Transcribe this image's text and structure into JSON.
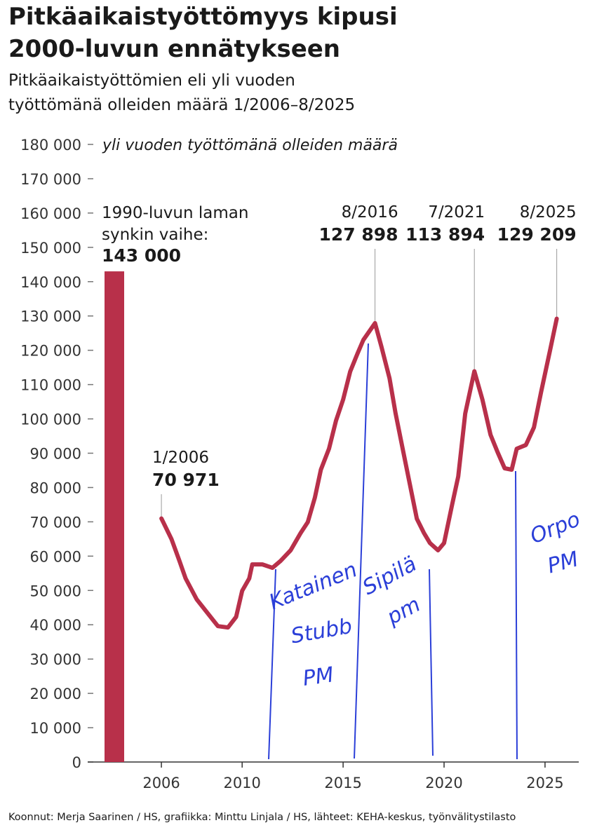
{
  "chart_data": {
    "type": "line",
    "title": [
      "Pitkäaikaistyöttömyys kipusi",
      "2000-luvun ennätykseen"
    ],
    "subtitle": [
      "Pitkäaikaistyöttömien eli yli vuoden",
      "työttömänä olleiden määrä 1/2006–8/2025"
    ],
    "y_label": "yli vuoden työttömänä olleiden määrä",
    "color": "#b8304a",
    "x": [
      2006.0,
      2006.5,
      2006.87,
      2007.2,
      2007.75,
      2008.3,
      2008.8,
      2009.3,
      2009.7,
      2010.0,
      2010.35,
      2010.5,
      2011.0,
      2011.5,
      2011.9,
      2012.4,
      2012.9,
      2013.25,
      2013.6,
      2013.9,
      2014.3,
      2014.65,
      2015.0,
      2015.35,
      2015.7,
      2016.0,
      2016.58,
      2016.9,
      2017.3,
      2017.6,
      2017.95,
      2018.3,
      2018.65,
      2019.0,
      2019.3,
      2019.7,
      2020.0,
      2020.4,
      2020.7,
      2021.05,
      2021.5,
      2021.9,
      2022.3,
      2022.65,
      2023.0,
      2023.35,
      2023.6,
      2024.05,
      2024.45,
      2024.8,
      2025.25,
      2025.58
    ],
    "values": [
      70971,
      65000,
      59000,
      53500,
      47400,
      43300,
      39600,
      39200,
      42300,
      49900,
      53500,
      57600,
      57600,
      56600,
      58600,
      61700,
      66800,
      69900,
      77000,
      85200,
      91300,
      99500,
      105600,
      113800,
      118900,
      123000,
      127898,
      121000,
      111800,
      101600,
      91300,
      81100,
      70900,
      66800,
      63800,
      61700,
      63800,
      75000,
      83200,
      101600,
      113894,
      105600,
      95400,
      90300,
      85600,
      85200,
      91300,
      92400,
      97500,
      107700,
      120000,
      129209
    ],
    "xlim": [
      2002.35,
      2026.67
    ],
    "xticks": [
      2006,
      2010,
      2015,
      2020,
      2025
    ],
    "ylim": [
      0,
      180000
    ],
    "yticks": [
      {
        "value": 0,
        "label": "0"
      },
      {
        "value": 10000,
        "label": "10 000"
      },
      {
        "value": 20000,
        "label": "20 000"
      },
      {
        "value": 30000,
        "label": "30 000"
      },
      {
        "value": 40000,
        "label": "40 000"
      },
      {
        "value": 50000,
        "label": "50 000"
      },
      {
        "value": 60000,
        "label": "60 000"
      },
      {
        "value": 70000,
        "label": "70 000"
      },
      {
        "value": 80000,
        "label": "80 000"
      },
      {
        "value": 90000,
        "label": "90 000"
      },
      {
        "value": 100000,
        "label": "100 000"
      },
      {
        "value": 110000,
        "label": "110 000"
      },
      {
        "value": 120000,
        "label": "120 000"
      },
      {
        "value": 130000,
        "label": "130 000"
      },
      {
        "value": 140000,
        "label": "140 000"
      },
      {
        "value": 150000,
        "label": "150 000"
      },
      {
        "value": 160000,
        "label": "160 000"
      },
      {
        "value": 170000,
        "label": "170 000"
      },
      {
        "value": 180000,
        "label": "180 000"
      }
    ],
    "reference_bar": {
      "label": [
        "1990-luvun laman",
        "synkin vaihe:"
      ],
      "value": 143000,
      "value_label": "143 000"
    },
    "annotations": [
      {
        "label": "1/2006",
        "x": 2006.0,
        "value": 70971,
        "value_label": "70 971"
      },
      {
        "label": "8/2016",
        "x": 2016.58,
        "value": 127898,
        "value_label": "127 898"
      },
      {
        "label": "7/2021",
        "x": 2021.5,
        "value": 113894,
        "value_label": "113 894"
      },
      {
        "label": "8/2025",
        "x": 2025.58,
        "value": 129209,
        "value_label": "129 209"
      }
    ],
    "handwritten_notes": [
      [
        "Katainen",
        "Stubb",
        "PM"
      ],
      [
        "Sipilä",
        "pm"
      ],
      [
        "Orpo",
        "PM"
      ]
    ],
    "source": "Koonnut: Merja Saarinen / HS, grafiikka: Minttu Linjala / HS, lähteet: KEHA-keskus, työnvälitystilasto"
  }
}
